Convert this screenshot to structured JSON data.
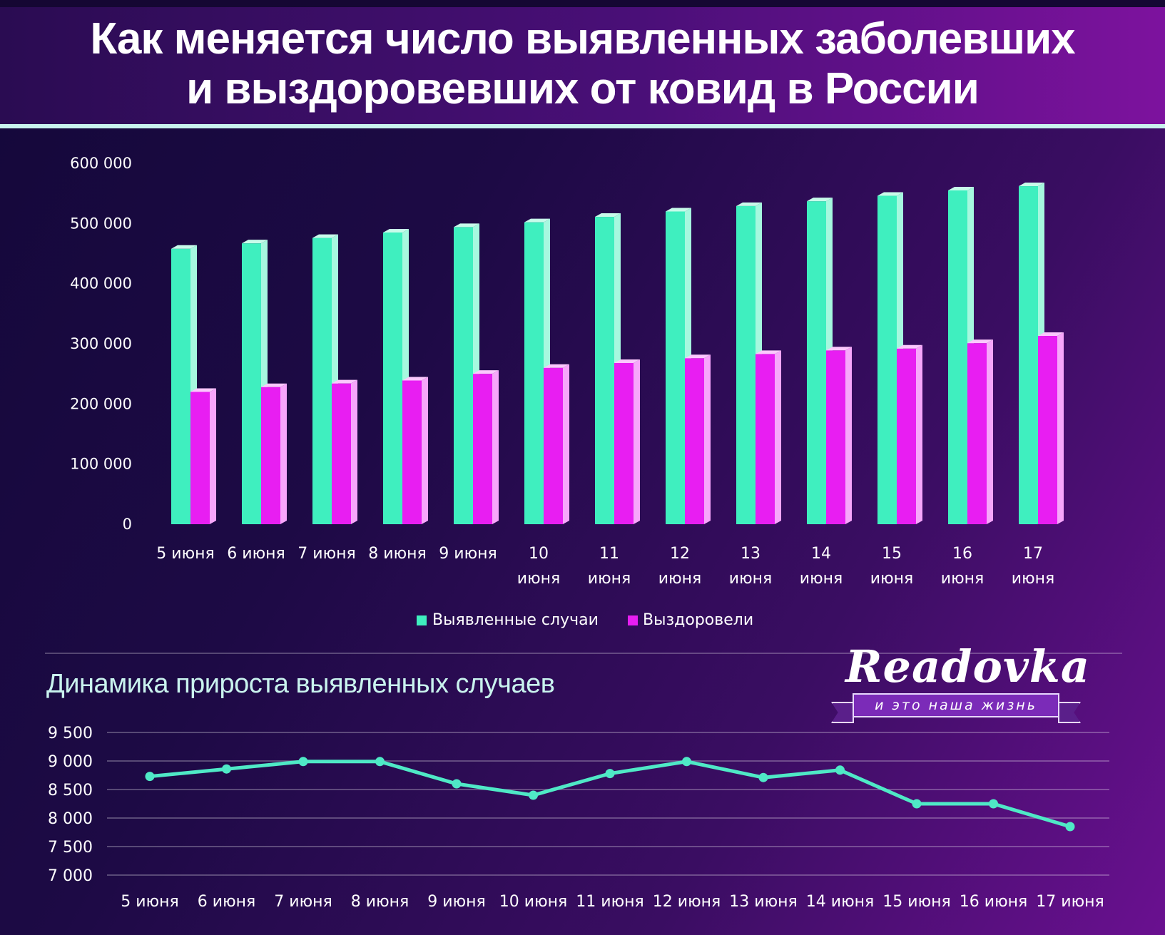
{
  "title_lines": [
    "Как меняется число выявленных заболевших",
    "и выздоровевших от ковид в России"
  ],
  "subtitle": "Динамика прироста выявленных случаев",
  "logo": {
    "word": "Readovka",
    "tagline": "и это наша жизнь"
  },
  "colors": {
    "cases": "#3fefbf",
    "recovered": "#e81ef2",
    "line": "#4fe9c6",
    "text": "#ffffff"
  },
  "chart_data": [
    {
      "type": "bar",
      "categories": [
        [
          "5 июня"
        ],
        [
          "6 июня"
        ],
        [
          "7 июня"
        ],
        [
          "8 июня"
        ],
        [
          "9 июня"
        ],
        [
          "10",
          "июня"
        ],
        [
          "11",
          "июня"
        ],
        [
          "12",
          "июня"
        ],
        [
          "13",
          "июня"
        ],
        [
          "14",
          "июня"
        ],
        [
          "15",
          "июня"
        ],
        [
          "16",
          "июня"
        ],
        [
          "17",
          "июня"
        ]
      ],
      "series": [
        {
          "name": "Выявленные случаи",
          "values": [
            458000,
            467000,
            476000,
            485000,
            494000,
            502000,
            511000,
            520000,
            529000,
            537000,
            546000,
            555000,
            562000
          ]
        },
        {
          "name": "Выздоровели",
          "values": [
            220000,
            228000,
            234000,
            239000,
            250000,
            260000,
            268000,
            276000,
            283000,
            289000,
            292000,
            301000,
            313000
          ]
        }
      ],
      "yticks": [
        "0",
        "100 000",
        "200 000",
        "300 000",
        "400 000",
        "500 000",
        "600 000"
      ],
      "ylim": [
        0,
        600000
      ],
      "legend": "bottom"
    },
    {
      "type": "line",
      "categories": [
        "5 июня",
        "6 июня",
        "7 июня",
        "8 июня",
        "9 июня",
        "10 июня",
        "11 июня",
        "12 июня",
        "13 июня",
        "14 июня",
        "15 июня",
        "16 июня",
        "17 июня"
      ],
      "values": [
        8730,
        8860,
        8990,
        8990,
        8600,
        8400,
        8780,
        8990,
        8710,
        8840,
        8250,
        8250,
        7850
      ],
      "yticks": [
        "7 000",
        "7 500",
        "8 000",
        "8 500",
        "9 000",
        "9 500"
      ],
      "ylim": [
        7000,
        9500
      ],
      "grid": true
    }
  ]
}
